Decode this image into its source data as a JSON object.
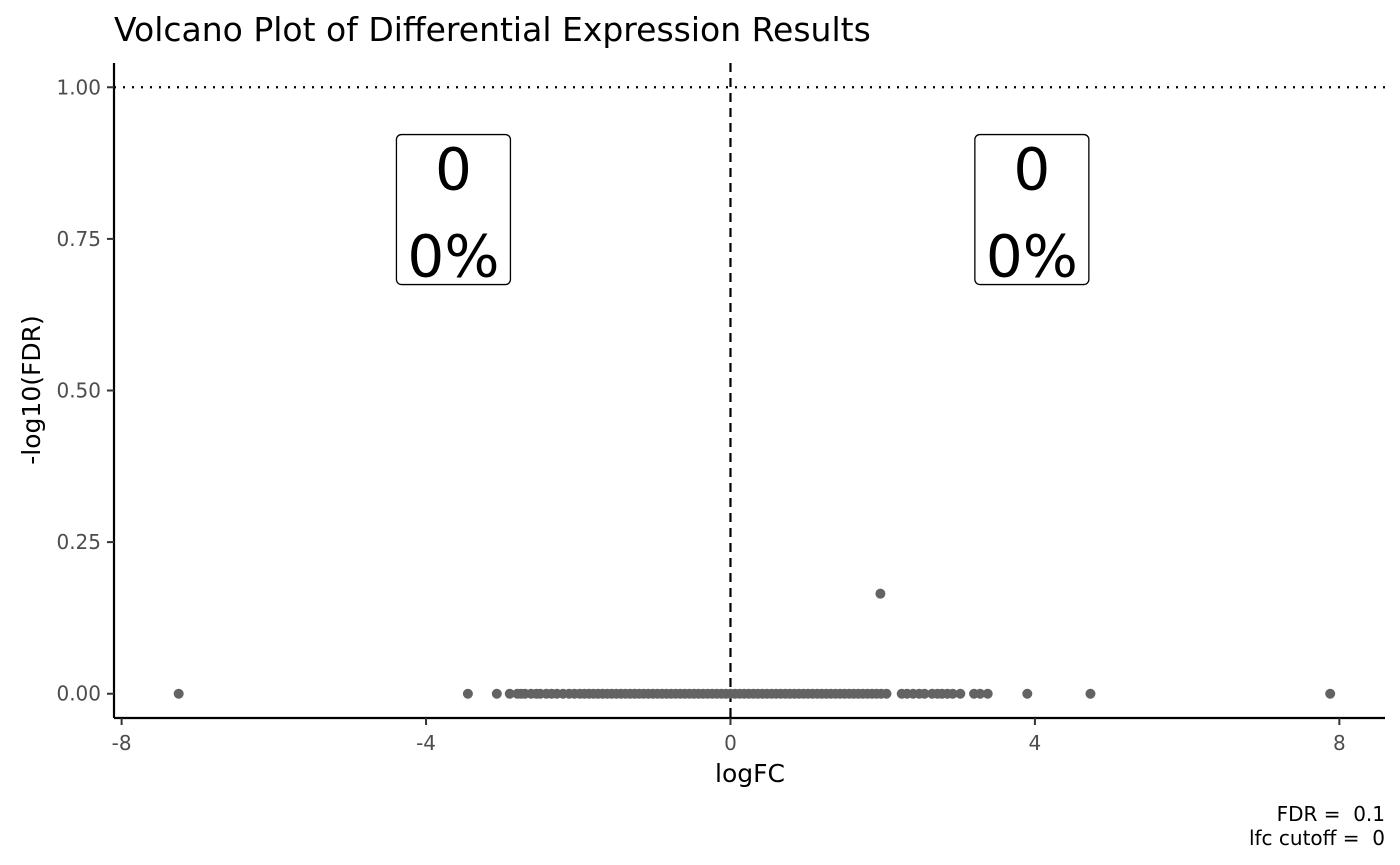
{
  "chart_data": {
    "type": "scatter",
    "title": "Volcano Plot of Differential Expression Results",
    "xlabel": "logFC",
    "ylabel": "-log10(FDR)",
    "xlim": [
      -8.1,
      8.6
    ],
    "ylim": [
      -0.04,
      1.04
    ],
    "x_ticks": [
      -8,
      -4,
      0,
      4,
      8
    ],
    "x_tick_labels": [
      "-8",
      "-4",
      "0",
      "4",
      "8"
    ],
    "y_ticks": [
      0,
      0.25,
      0.5,
      0.75,
      1.0
    ],
    "y_tick_labels": [
      "0.00",
      "0.25",
      "0.50",
      "0.75",
      "1.00"
    ],
    "grid": false,
    "point_color": "#636363",
    "reference_lines": [
      {
        "axis": "y",
        "value": 1.0,
        "style": "dotted"
      },
      {
        "axis": "x",
        "value": 0,
        "style": "dashed"
      }
    ],
    "annotations": [
      {
        "x": -3.64,
        "y": 0.8,
        "count": "0",
        "percent": "0%"
      },
      {
        "x": 3.96,
        "y": 0.8,
        "count": "0",
        "percent": "0%"
      }
    ],
    "caption_lines": [
      "FDR =  0.1",
      "lfc cutoff =  0"
    ],
    "points": [
      {
        "x": -7.25,
        "y": 0
      },
      {
        "x": -3.45,
        "y": 0
      },
      {
        "x": -3.07,
        "y": 0
      },
      {
        "x": -2.9,
        "y": 0
      },
      {
        "x": -2.8,
        "y": 0
      },
      {
        "x": -2.75,
        "y": 0
      },
      {
        "x": -2.7,
        "y": 0
      },
      {
        "x": -2.62,
        "y": 0
      },
      {
        "x": -2.55,
        "y": 0
      },
      {
        "x": -2.5,
        "y": 0
      },
      {
        "x": -2.42,
        "y": 0
      },
      {
        "x": -2.35,
        "y": 0
      },
      {
        "x": -2.28,
        "y": 0
      },
      {
        "x": -2.2,
        "y": 0
      },
      {
        "x": -2.12,
        "y": 0
      },
      {
        "x": -2.05,
        "y": 0
      },
      {
        "x": -1.98,
        "y": 0
      },
      {
        "x": -1.92,
        "y": 0
      },
      {
        "x": -1.86,
        "y": 0
      },
      {
        "x": -1.8,
        "y": 0
      },
      {
        "x": -1.74,
        "y": 0
      },
      {
        "x": -1.68,
        "y": 0
      },
      {
        "x": -1.62,
        "y": 0
      },
      {
        "x": -1.56,
        "y": 0
      },
      {
        "x": -1.5,
        "y": 0
      },
      {
        "x": -1.44,
        "y": 0
      },
      {
        "x": -1.38,
        "y": 0
      },
      {
        "x": -1.32,
        "y": 0
      },
      {
        "x": -1.26,
        "y": 0
      },
      {
        "x": -1.2,
        "y": 0
      },
      {
        "x": -1.14,
        "y": 0
      },
      {
        "x": -1.08,
        "y": 0
      },
      {
        "x": -1.02,
        "y": 0
      },
      {
        "x": -0.96,
        "y": 0
      },
      {
        "x": -0.9,
        "y": 0
      },
      {
        "x": -0.84,
        "y": 0
      },
      {
        "x": -0.78,
        "y": 0
      },
      {
        "x": -0.72,
        "y": 0
      },
      {
        "x": -0.66,
        "y": 0
      },
      {
        "x": -0.6,
        "y": 0
      },
      {
        "x": -0.54,
        "y": 0
      },
      {
        "x": -0.48,
        "y": 0
      },
      {
        "x": -0.42,
        "y": 0
      },
      {
        "x": -0.36,
        "y": 0
      },
      {
        "x": -0.3,
        "y": 0
      },
      {
        "x": -0.24,
        "y": 0
      },
      {
        "x": -0.18,
        "y": 0
      },
      {
        "x": -0.12,
        "y": 0
      },
      {
        "x": -0.06,
        "y": 0
      },
      {
        "x": 0,
        "y": 0
      },
      {
        "x": 0.06,
        "y": 0
      },
      {
        "x": 0.12,
        "y": 0
      },
      {
        "x": 0.18,
        "y": 0
      },
      {
        "x": 0.24,
        "y": 0
      },
      {
        "x": 0.3,
        "y": 0
      },
      {
        "x": 0.36,
        "y": 0
      },
      {
        "x": 0.42,
        "y": 0
      },
      {
        "x": 0.48,
        "y": 0
      },
      {
        "x": 0.54,
        "y": 0
      },
      {
        "x": 0.6,
        "y": 0
      },
      {
        "x": 0.66,
        "y": 0
      },
      {
        "x": 0.72,
        "y": 0
      },
      {
        "x": 0.78,
        "y": 0
      },
      {
        "x": 0.84,
        "y": 0
      },
      {
        "x": 0.9,
        "y": 0
      },
      {
        "x": 0.96,
        "y": 0
      },
      {
        "x": 1.02,
        "y": 0
      },
      {
        "x": 1.08,
        "y": 0
      },
      {
        "x": 1.14,
        "y": 0
      },
      {
        "x": 1.2,
        "y": 0
      },
      {
        "x": 1.26,
        "y": 0
      },
      {
        "x": 1.32,
        "y": 0
      },
      {
        "x": 1.38,
        "y": 0
      },
      {
        "x": 1.44,
        "y": 0
      },
      {
        "x": 1.5,
        "y": 0
      },
      {
        "x": 1.56,
        "y": 0
      },
      {
        "x": 1.62,
        "y": 0
      },
      {
        "x": 1.68,
        "y": 0
      },
      {
        "x": 1.74,
        "y": 0
      },
      {
        "x": 1.8,
        "y": 0
      },
      {
        "x": 1.86,
        "y": 0
      },
      {
        "x": 1.92,
        "y": 0
      },
      {
        "x": 1.98,
        "y": 0
      },
      {
        "x": 2.05,
        "y": 0
      },
      {
        "x": 2.25,
        "y": 0
      },
      {
        "x": 2.32,
        "y": 0
      },
      {
        "x": 2.4,
        "y": 0
      },
      {
        "x": 2.48,
        "y": 0
      },
      {
        "x": 2.55,
        "y": 0
      },
      {
        "x": 2.65,
        "y": 0
      },
      {
        "x": 2.72,
        "y": 0
      },
      {
        "x": 2.78,
        "y": 0
      },
      {
        "x": 2.85,
        "y": 0
      },
      {
        "x": 2.92,
        "y": 0
      },
      {
        "x": 3.02,
        "y": 0
      },
      {
        "x": 3.2,
        "y": 0
      },
      {
        "x": 3.28,
        "y": 0
      },
      {
        "x": 3.38,
        "y": 0
      },
      {
        "x": 3.9,
        "y": 0
      },
      {
        "x": 4.73,
        "y": 0
      },
      {
        "x": 7.88,
        "y": 0
      },
      {
        "x": 1.97,
        "y": 0.165
      }
    ]
  }
}
